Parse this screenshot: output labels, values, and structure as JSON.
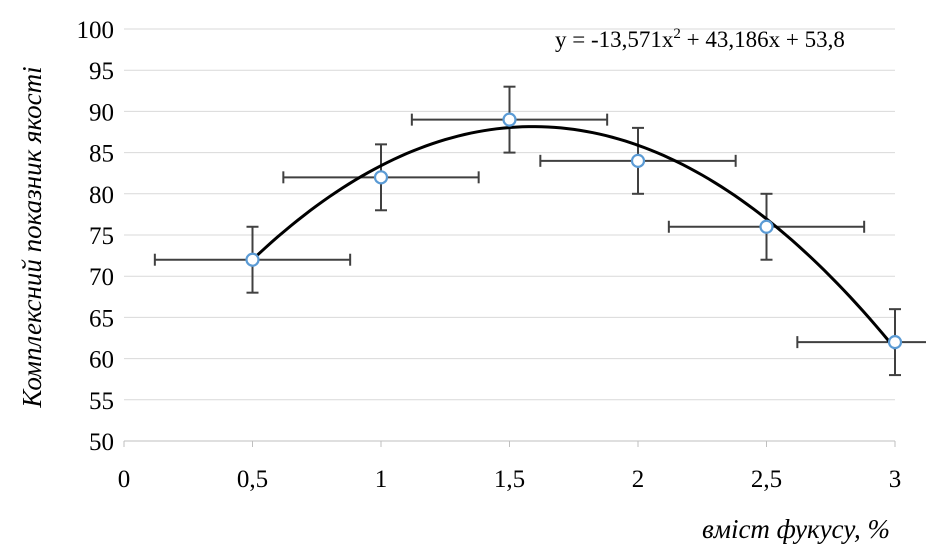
{
  "chart_data": {
    "type": "scatter",
    "xlabel": "вміст фукусу, %",
    "ylabel": "Комплексний показник якості",
    "xlim": [
      0,
      3
    ],
    "ylim": [
      50,
      100
    ],
    "x_ticks": [
      "0",
      "0,5",
      "1",
      "1,5",
      "2",
      "2,5",
      "3"
    ],
    "y_ticks": [
      "50",
      "55",
      "60",
      "65",
      "70",
      "75",
      "80",
      "85",
      "90",
      "95",
      "100"
    ],
    "grid": "horizontal",
    "series": [
      {
        "x": [
          0.5,
          1.0,
          1.5,
          2.0,
          2.5,
          3.0
        ],
        "y": [
          72,
          82,
          89,
          84,
          76,
          62
        ],
        "x_error": [
          0.38,
          0.38,
          0.38,
          0.38,
          0.38,
          0.38
        ],
        "y_error": [
          4,
          4,
          4,
          4,
          4,
          4
        ]
      }
    ],
    "trendline": {
      "type": "polynomial",
      "order": 2,
      "coefficients": [
        -13.571,
        43.186,
        53.8
      ],
      "equation": "y = -13,571x² + 43,186x + 53,8"
    },
    "colors": {
      "marker_edge": "#5b9bd5",
      "trendline": "#000000",
      "error_bars": "#404040",
      "grid": "#d9d9d9"
    }
  }
}
